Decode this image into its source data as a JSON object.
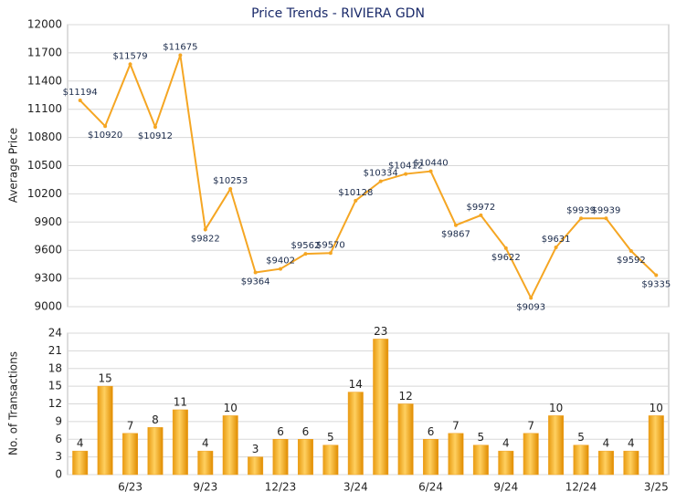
{
  "chart_data": [
    {
      "type": "line",
      "title": "Price Trends - RIVIERA GDN",
      "y_label": "Average Price",
      "color": "#f5a623",
      "values": [
        11194,
        10920,
        11579,
        10912,
        11675,
        9822,
        10253,
        9364,
        9402,
        9562,
        9570,
        10128,
        10334,
        10412,
        10440,
        9867,
        9972,
        9622,
        9093,
        9631,
        9939,
        9939,
        9592,
        9335
      ],
      "value_labels": [
        "$11194",
        "$10920",
        "$11579",
        "$10912",
        "$11675",
        "$9822",
        "$10253",
        "$9364",
        "$9402",
        "$9562",
        "$9570",
        "$10128",
        "$10334",
        "$10412",
        "$10440",
        "$9867",
        "$9972",
        "$9622",
        "$9093",
        "$9631",
        "$9939",
        "$9939",
        "$9592",
        "$9335"
      ],
      "ylim": [
        9000,
        12000
      ],
      "yticks": [
        9000,
        9300,
        9600,
        9900,
        10200,
        10500,
        10800,
        11100,
        11400,
        11700,
        12000
      ],
      "grid": true
    },
    {
      "type": "bar",
      "y_label": "No. of Transactions",
      "color": "#f0a020",
      "categories": [
        null,
        null,
        "6/23",
        null,
        null,
        "9/23",
        null,
        null,
        "12/23",
        null,
        null,
        "3/24",
        null,
        null,
        "6/24",
        null,
        null,
        "9/24",
        null,
        null,
        "12/24",
        null,
        null,
        "3/25"
      ],
      "values": [
        4,
        15,
        7,
        8,
        11,
        4,
        10,
        3,
        6,
        6,
        5,
        14,
        23,
        12,
        6,
        7,
        5,
        4,
        7,
        10,
        5,
        4,
        4,
        10
      ],
      "ylim": [
        0,
        24
      ],
      "yticks": [
        0,
        3,
        6,
        9,
        12,
        15,
        18,
        21,
        24
      ],
      "grid": true
    }
  ]
}
